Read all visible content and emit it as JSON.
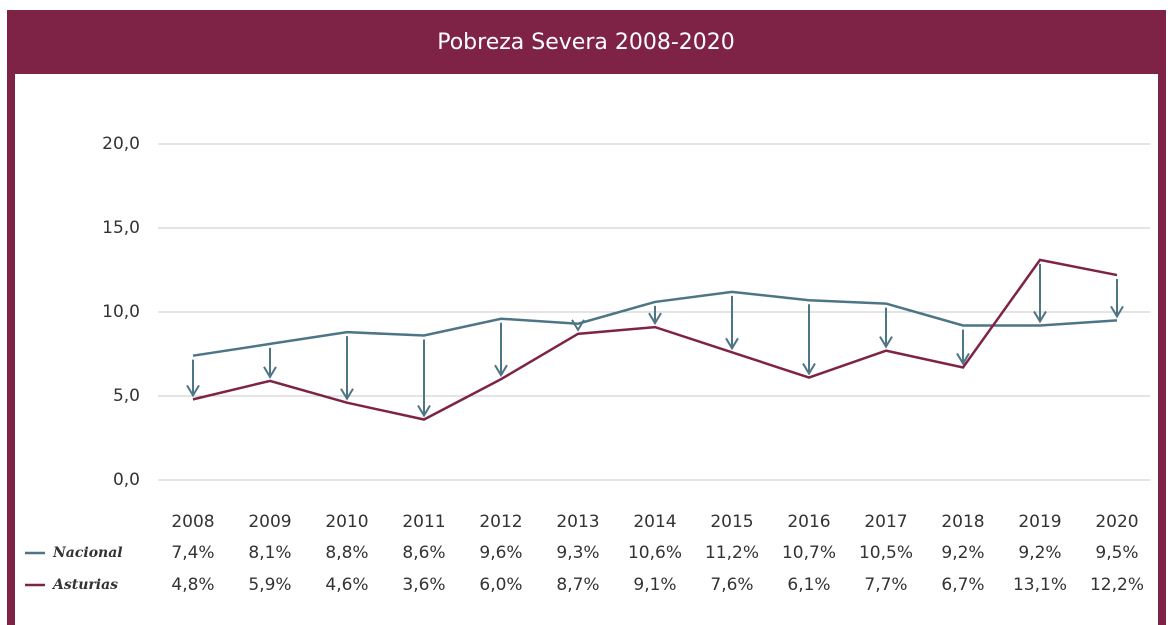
{
  "chart_data": {
    "type": "line",
    "title": "Pobreza Severa 2008-2020",
    "categories": [
      "2008",
      "2009",
      "2010",
      "2011",
      "2012",
      "2013",
      "2014",
      "2015",
      "2016",
      "2017",
      "2018",
      "2019",
      "2020"
    ],
    "series": [
      {
        "name": "Nacional",
        "color": "#4e7585",
        "values": [
          7.4,
          8.1,
          8.8,
          8.6,
          9.6,
          9.3,
          10.6,
          11.2,
          10.7,
          10.5,
          9.2,
          9.2,
          9.5
        ],
        "value_labels": [
          "7,4%",
          "8,1%",
          "8,8%",
          "8,6%",
          "9,6%",
          "9,3%",
          "10,6%",
          "11,2%",
          "10,7%",
          "10,5%",
          "9,2%",
          "9,2%",
          "9,5%"
        ]
      },
      {
        "name": "Asturias",
        "color": "#7f2346",
        "values": [
          4.8,
          5.9,
          4.6,
          3.6,
          6.0,
          8.7,
          9.1,
          7.6,
          6.1,
          7.7,
          6.7,
          13.1,
          12.2
        ],
        "value_labels": [
          "4,8%",
          "5,9%",
          "4,6%",
          "3,6%",
          "6,0%",
          "8,7%",
          "9,1%",
          "7,6%",
          "6,1%",
          "7,7%",
          "6,7%",
          "13,1%",
          "12,2%"
        ]
      }
    ],
    "ylim": [
      0,
      20
    ],
    "yticks": [
      {
        "value": 0,
        "label": "0,0"
      },
      {
        "value": 5,
        "label": "5,0"
      },
      {
        "value": 10,
        "label": "10,0"
      },
      {
        "value": 15,
        "label": "15,0"
      },
      {
        "value": 20,
        "label": "20,0"
      }
    ],
    "grid": true
  }
}
